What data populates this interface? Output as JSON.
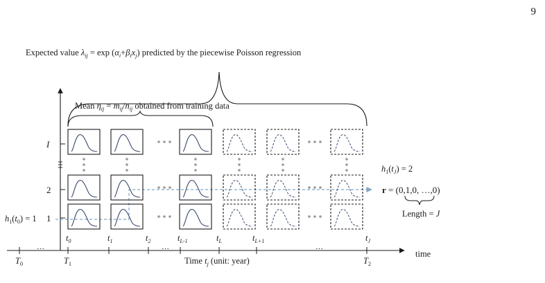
{
  "page_number": "9",
  "top_label": {
    "prefix": "Expected value ",
    "lambda": "λ",
    "lambda_sub": "ij",
    "eq": " = exp (",
    "alpha": "α",
    "alpha_sub": "i",
    "plus": "+",
    "beta": "β",
    "beta_sub": "i",
    "x": "x",
    "x_sub": "j",
    "suffix": ") predicted by the piecewise Poisson regression"
  },
  "mid_label": {
    "prefix": "Mean ",
    "eta": "η",
    "eta_sub": "ij",
    "eq": " = ",
    "m": "m",
    "m_sub": "ij",
    "slash": "/",
    "n": "n",
    "n_sub": "ij",
    "suffix": " obtained from training data"
  },
  "rows": {
    "I": "I",
    "two": "2",
    "one": "1"
  },
  "h1_t0": {
    "h": "h",
    "h_sub": "1",
    "open": "(",
    "t": "t",
    "t_sub": "0",
    "rest": ") = 1"
  },
  "h1_tJ": {
    "h": "h",
    "h_sub": "1",
    "open": "(",
    "t": "t",
    "t_sub": "J",
    "rest": ") = 2"
  },
  "r_vector": {
    "r": "r",
    "rest": " = (0,1,0, …,0)"
  },
  "length_label": {
    "prefix": "Length = ",
    "J": "J"
  },
  "ellipsis": "…",
  "t_labels": [
    {
      "base": "t",
      "sub": "0"
    },
    {
      "base": "t",
      "sub": "1"
    },
    {
      "base": "t",
      "sub": "2"
    },
    {
      "base": "t",
      "sub": "L-1"
    },
    {
      "base": "t",
      "sub": "L"
    },
    {
      "base": "t",
      "sub": "L+1"
    },
    {
      "base": "t",
      "sub": "J"
    }
  ],
  "T_labels": [
    {
      "base": "T",
      "sub": "0"
    },
    {
      "base": "T",
      "sub": "1"
    },
    {
      "base": "T",
      "sub": "2"
    }
  ],
  "time_axis_label": {
    "prefix": "Time ",
    "t": "t",
    "t_sub": "j",
    "suffix": " (unit: year)"
  },
  "time_word": "time",
  "colors": {
    "dashed_arrow": "#7fa7c9",
    "dots": "#999999",
    "line": "#1a1a1a",
    "curve": "#3a4a6a"
  }
}
